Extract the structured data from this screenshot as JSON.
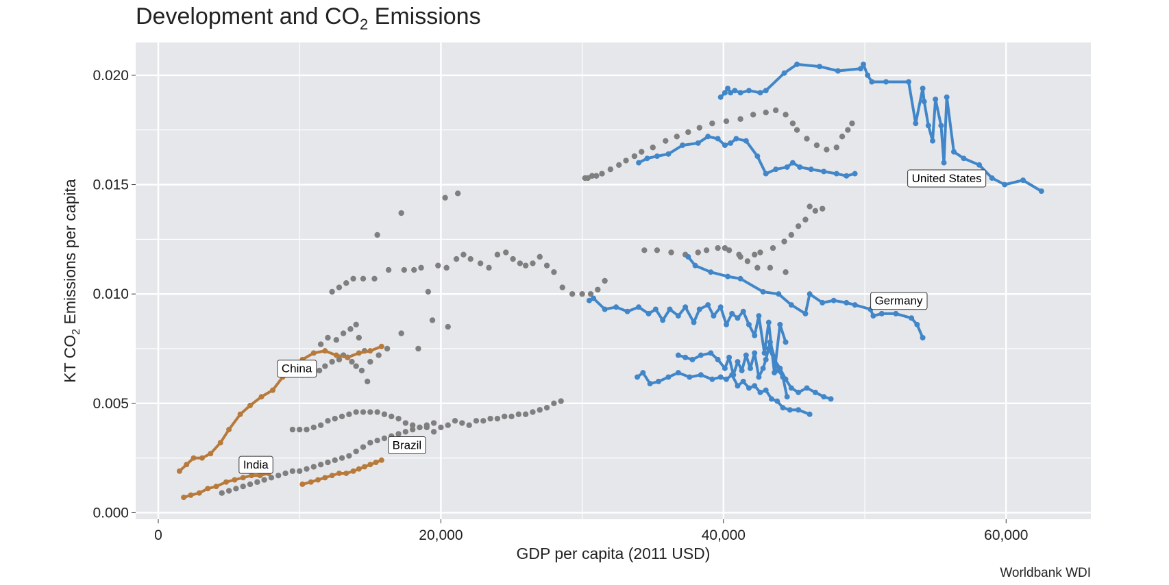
{
  "chart_data": {
    "type": "scatter",
    "title": "Development and CO",
    "title_sub": "2",
    "title_suffix": " Emissions",
    "xlabel": "GDP per capita (2011 USD)",
    "ylabel_prefix": "KT CO",
    "ylabel_sub": "2",
    "ylabel_suffix": " Emissions per capita",
    "caption": "Worldbank WDI",
    "xlim": [
      -1600,
      66000
    ],
    "ylim": [
      -0.0003,
      0.0215
    ],
    "x_ticks": [
      0,
      20000,
      40000,
      60000
    ],
    "x_tick_labels": [
      "0",
      "20,000",
      "40,000",
      "60,000"
    ],
    "x_minor_ticks": [
      10000,
      30000,
      50000
    ],
    "y_ticks": [
      0,
      0.005,
      0.01,
      0.015,
      0.02
    ],
    "y_tick_labels": [
      "0.000",
      "0.005",
      "0.010",
      "0.015",
      "0.020"
    ],
    "y_minor_ticks": [
      0.0025,
      0.0075,
      0.0125,
      0.0175
    ],
    "grid": true,
    "colors": {
      "panel": "#e5e7eb",
      "grid": "#ffffff",
      "background_points": "#7f7f7f",
      "developed": "#4186c8",
      "developing": "#b77a3b"
    },
    "background_series": [
      {
        "x": [
          30200,
          30400,
          30700,
          31000,
          31400,
          32000,
          32600,
          33100,
          33700,
          34200,
          35000,
          35900,
          36700,
          37500,
          38300,
          39200,
          40200,
          41200,
          42100,
          43000,
          43700,
          44400,
          44900,
          45200,
          45900,
          46600,
          47300,
          48000,
          48400,
          48800,
          49100
        ],
        "y": [
          0.0153,
          0.0153,
          0.0154,
          0.0154,
          0.0155,
          0.0157,
          0.0159,
          0.0161,
          0.0163,
          0.0165,
          0.0167,
          0.017,
          0.0172,
          0.0174,
          0.0176,
          0.0178,
          0.0179,
          0.018,
          0.0182,
          0.0183,
          0.0184,
          0.0182,
          0.0178,
          0.0175,
          0.0171,
          0.0168,
          0.0166,
          0.0167,
          0.0172,
          0.0175,
          0.0178
        ]
      },
      {
        "x": [
          12300,
          12800,
          13300,
          13800,
          14500,
          15300,
          16300,
          17400,
          18600,
          19800,
          20400,
          21100,
          21600,
          22100,
          22800,
          23400,
          24000,
          24600,
          25100,
          25600,
          26000,
          26500,
          27000,
          27500,
          28000,
          28600,
          29300,
          30000,
          30600,
          31100,
          31600
        ],
        "y": [
          0.0101,
          0.0103,
          0.0105,
          0.0107,
          0.0107,
          0.0107,
          0.0111,
          0.0111,
          0.0112,
          0.0113,
          0.0112,
          0.0116,
          0.0118,
          0.0116,
          0.0114,
          0.0112,
          0.0118,
          0.0119,
          0.0116,
          0.0114,
          0.0113,
          0.0114,
          0.0117,
          0.0113,
          0.011,
          0.0103,
          0.01,
          0.01,
          0.01,
          0.0102,
          0.0106
        ]
      },
      {
        "x": [
          11500,
          12000,
          12600,
          13100,
          13600,
          14000,
          14200,
          14600,
          15000,
          15600,
          16200
        ],
        "y": [
          0.0077,
          0.008,
          0.0079,
          0.0082,
          0.0084,
          0.0086,
          0.008,
          0.0074,
          0.0069,
          0.0072,
          0.0075
        ]
      },
      {
        "x": [
          10200,
          10600,
          11000,
          11400,
          11800,
          12300,
          12800,
          13100,
          13400,
          13700,
          14000,
          14400,
          14800
        ],
        "y": [
          0.0063,
          0.0063,
          0.0064,
          0.0065,
          0.0067,
          0.0069,
          0.007,
          0.0072,
          0.0071,
          0.0069,
          0.0067,
          0.0065,
          0.006
        ]
      },
      {
        "x": [
          9500,
          10000,
          10500,
          11000,
          11500,
          12000,
          12500,
          13000,
          13500,
          14000,
          14500,
          15000,
          15500,
          16000,
          16500,
          17000,
          17500,
          18000,
          18500,
          19000,
          19500,
          20000,
          20500,
          21000,
          21500,
          22000,
          22500,
          23000,
          23500,
          24000,
          24500,
          25000,
          25500,
          26000,
          26500,
          27000,
          27500,
          28000,
          28500
        ],
        "y": [
          0.0038,
          0.0038,
          0.0038,
          0.0039,
          0.004,
          0.0042,
          0.0043,
          0.0044,
          0.0045,
          0.0046,
          0.0046,
          0.0046,
          0.0046,
          0.0045,
          0.0044,
          0.0043,
          0.0041,
          0.004,
          0.0039,
          0.0039,
          0.0037,
          0.0039,
          0.004,
          0.0042,
          0.0041,
          0.004,
          0.0042,
          0.0042,
          0.0043,
          0.0043,
          0.0044,
          0.0044,
          0.0045,
          0.0045,
          0.0046,
          0.0047,
          0.0048,
          0.005,
          0.0051
        ]
      },
      {
        "x": [
          4500,
          5000,
          5500,
          6000,
          6500,
          7000,
          7500,
          8000,
          8500,
          9000,
          9500,
          10000,
          10500,
          11000,
          11500,
          12000,
          12500,
          13000,
          13500,
          14000,
          14500,
          15000,
          15500,
          16000,
          16500,
          17000,
          17500,
          18000,
          18500,
          19000,
          19500
        ],
        "y": [
          0.0009,
          0.001,
          0.0011,
          0.0012,
          0.0013,
          0.0014,
          0.0015,
          0.0016,
          0.0017,
          0.0018,
          0.0019,
          0.0019,
          0.002,
          0.0021,
          0.0022,
          0.0023,
          0.0024,
          0.0025,
          0.0026,
          0.0028,
          0.003,
          0.0032,
          0.0033,
          0.0034,
          0.0035,
          0.0036,
          0.0037,
          0.0038,
          0.0039,
          0.004,
          0.0041
        ]
      },
      {
        "x": [
          17200,
          18100,
          19100,
          20300,
          21200
        ],
        "y": [
          0.0137,
          0.0111,
          0.0101,
          0.0144,
          0.0146
        ]
      },
      {
        "x": [
          15500,
          17200,
          18400,
          19400,
          20500
        ],
        "y": [
          0.0127,
          0.0082,
          0.0075,
          0.0088,
          0.0085
        ]
      },
      {
        "x": [
          40100,
          41200,
          42200,
          42600,
          43500,
          44300,
          44800,
          45300,
          45800,
          46100,
          46500,
          47000
        ],
        "y": [
          0.0121,
          0.0117,
          0.0118,
          0.0119,
          0.0121,
          0.0124,
          0.0127,
          0.0131,
          0.0134,
          0.014,
          0.0138,
          0.0139
        ]
      },
      {
        "x": [
          34400,
          35300,
          36300,
          37300,
          38200,
          38800,
          39600,
          40400,
          41100,
          41700,
          42400,
          43300,
          44400
        ],
        "y": [
          0.012,
          0.012,
          0.0119,
          0.0118,
          0.0119,
          0.012,
          0.0121,
          0.012,
          0.0118,
          0.0115,
          0.0112,
          0.0112,
          0.011
        ]
      }
    ],
    "highlight_series": [
      {
        "group": "developed",
        "label": "United States",
        "label_x": 55800,
        "label_y": 0.0153,
        "x": [
          39800,
          40100,
          40300,
          40500,
          40800,
          41200,
          41800,
          42600,
          43000,
          44300,
          45200,
          46800,
          48100,
          49700,
          49900,
          50200,
          50500,
          51500,
          53100,
          53600,
          54100,
          54200,
          54500,
          54800,
          55000,
          55400,
          55600,
          55800,
          56300,
          57000,
          58100,
          59000,
          59900,
          61200,
          62500
        ],
        "y": [
          0.019,
          0.0192,
          0.0194,
          0.0192,
          0.0193,
          0.0192,
          0.0193,
          0.0192,
          0.0193,
          0.0201,
          0.0205,
          0.0204,
          0.0202,
          0.0203,
          0.0205,
          0.02,
          0.0197,
          0.0197,
          0.0197,
          0.0178,
          0.0194,
          0.0188,
          0.0177,
          0.017,
          0.0189,
          0.0177,
          0.016,
          0.019,
          0.0165,
          0.0162,
          0.0159,
          0.0153,
          0.015,
          0.0152,
          0.0147
        ]
      },
      {
        "group": "developed",
        "label": "Germany",
        "label_x": 52400,
        "label_y": 0.0097,
        "x": [
          37500,
          38000,
          39100,
          40300,
          41200,
          42800,
          43900,
          44800,
          45800,
          46100,
          47000,
          47800,
          48700,
          49300,
          50400,
          50600,
          51200,
          52200,
          53300,
          53700,
          54100
        ],
        "y": [
          0.0117,
          0.0113,
          0.011,
          0.0108,
          0.0107,
          0.0101,
          0.01,
          0.0095,
          0.0091,
          0.01,
          0.0096,
          0.0097,
          0.0096,
          0.0095,
          0.0093,
          0.009,
          0.0091,
          0.0091,
          0.0089,
          0.0086,
          0.008
        ]
      },
      {
        "group": "developed",
        "label": "",
        "label_x": 0,
        "label_y": 0,
        "x": [
          34000,
          34600,
          35300,
          36100,
          37100,
          38200,
          38900,
          39600,
          40100,
          40500,
          40900,
          41600,
          42400,
          43000,
          43700,
          44500,
          44900,
          45400,
          46200,
          47100,
          48000,
          48700,
          49300
        ],
        "y": [
          0.016,
          0.0162,
          0.0163,
          0.0164,
          0.0168,
          0.0169,
          0.0172,
          0.0171,
          0.0168,
          0.0169,
          0.0171,
          0.017,
          0.0163,
          0.0155,
          0.0157,
          0.0158,
          0.016,
          0.0158,
          0.0157,
          0.0156,
          0.0155,
          0.0154,
          0.0155
        ]
      },
      {
        "group": "developed",
        "label": "",
        "label_x": 0,
        "label_y": 0,
        "x": [
          30500,
          30800,
          31600,
          32400,
          33200,
          34000,
          34700,
          35200,
          35700,
          36200,
          36800,
          37300,
          37900,
          38300,
          38900,
          39300,
          39800,
          40200,
          40600,
          41000,
          41400,
          41800,
          42200,
          42500,
          42900,
          43200,
          43600,
          44000,
          44400
        ],
        "y": [
          0.0097,
          0.0098,
          0.0093,
          0.0094,
          0.0092,
          0.0094,
          0.0091,
          0.0093,
          0.0088,
          0.0093,
          0.009,
          0.0094,
          0.0087,
          0.0093,
          0.0095,
          0.009,
          0.0094,
          0.0086,
          0.0091,
          0.0089,
          0.0092,
          0.0086,
          0.0081,
          0.009,
          0.0073,
          0.0087,
          0.0064,
          0.0086,
          0.0078
        ]
      },
      {
        "group": "developed",
        "label": "",
        "label_x": 0,
        "label_y": 0,
        "x": [
          36800,
          37300,
          37800,
          38400,
          39100,
          39600,
          40100,
          40400,
          40700,
          41000,
          41300,
          41600,
          41900,
          42200,
          42500,
          42800,
          43000,
          43300,
          43600,
          43900,
          44200,
          44500
        ],
        "y": [
          0.0072,
          0.0071,
          0.007,
          0.0072,
          0.0073,
          0.007,
          0.0066,
          0.0071,
          0.0063,
          0.0069,
          0.0065,
          0.0072,
          0.0066,
          0.0073,
          0.0062,
          0.0066,
          0.007,
          0.0078,
          0.0071,
          0.0065,
          0.0062,
          0.0053
        ]
      },
      {
        "group": "developed",
        "label": "",
        "label_x": 0,
        "label_y": 0,
        "x": [
          33900,
          34300,
          34800,
          35400,
          36100,
          36800,
          37600,
          38400,
          39200,
          39800,
          40200,
          40600,
          41000,
          41400,
          41800,
          42200,
          42600,
          43000,
          43400,
          43800,
          44200,
          44700,
          45300,
          46100
        ],
        "y": [
          0.0062,
          0.0064,
          0.0059,
          0.006,
          0.0062,
          0.0064,
          0.0062,
          0.0063,
          0.0061,
          0.0062,
          0.0061,
          0.0063,
          0.0058,
          0.006,
          0.0057,
          0.0058,
          0.0055,
          0.0056,
          0.0052,
          0.0051,
          0.0048,
          0.0047,
          0.0047,
          0.0045
        ]
      },
      {
        "group": "developed",
        "label": "",
        "label_x": 0,
        "label_y": 0,
        "x": [
          43200,
          43600,
          44000,
          44400,
          44800,
          45300,
          45900,
          46500,
          47100,
          47600
        ],
        "y": [
          0.0075,
          0.007,
          0.0066,
          0.0061,
          0.0057,
          0.0055,
          0.0057,
          0.0055,
          0.0053,
          0.0052
        ]
      },
      {
        "group": "developing",
        "label": "China",
        "label_x": 9800,
        "label_y": 0.0066,
        "x": [
          1500,
          2000,
          2500,
          3100,
          3700,
          4400,
          5000,
          5800,
          6500,
          7300,
          8100,
          8800,
          9500,
          10200,
          11000,
          11800,
          12600,
          13400,
          14200,
          15000,
          15800
        ],
        "y": [
          0.0019,
          0.0022,
          0.0025,
          0.0025,
          0.0027,
          0.0032,
          0.0038,
          0.0045,
          0.0049,
          0.0053,
          0.0056,
          0.0062,
          0.0066,
          0.007,
          0.0073,
          0.0074,
          0.0072,
          0.0071,
          0.0073,
          0.0074,
          0.0076
        ]
      },
      {
        "group": "developing",
        "label": "India",
        "label_x": 6900,
        "label_y": 0.0022,
        "x": [
          1800,
          2300,
          2900,
          3500,
          4100,
          4800,
          5400,
          6000,
          6600,
          7200,
          7800
        ],
        "y": [
          0.0007,
          0.0008,
          0.0009,
          0.0011,
          0.0012,
          0.0014,
          0.0015,
          0.0016,
          0.0017,
          0.0017,
          0.0018
        ]
      },
      {
        "group": "developing",
        "label": "Brazil",
        "label_x": 17600,
        "label_y": 0.0031,
        "x": [
          10200,
          10800,
          11300,
          11800,
          12300,
          12800,
          13300,
          13800,
          14200,
          14600,
          15000,
          15400,
          15800
        ],
        "y": [
          0.0013,
          0.0014,
          0.0015,
          0.0016,
          0.0017,
          0.0018,
          0.0018,
          0.0019,
          0.002,
          0.0021,
          0.0022,
          0.0023,
          0.0024
        ]
      }
    ]
  }
}
